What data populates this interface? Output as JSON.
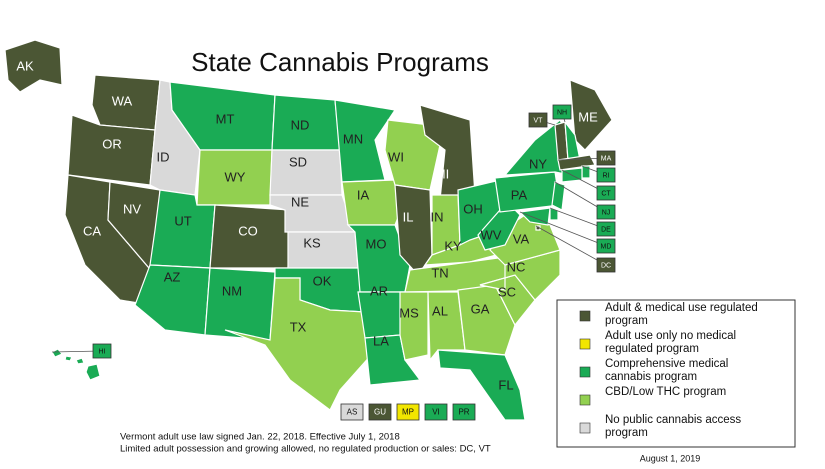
{
  "title": "State Cannabis Programs",
  "legend": [
    {
      "label": "Adult & medical use regulated program",
      "color": "#4b5634"
    },
    {
      "label": "Adult use only no medical regulated program",
      "color": "#f2e600"
    },
    {
      "label": "Comprehensive medical cannabis program",
      "color": "#1aab55"
    },
    {
      "label": "CBD/Low THC program",
      "color": "#92d050"
    },
    {
      "label": "No public cannabis access program",
      "color": "#d9d9d9"
    }
  ],
  "states": [
    {
      "label": "AK",
      "color": "#4b5634"
    },
    {
      "label": "WA",
      "color": "#4b5634"
    },
    {
      "label": "OR",
      "color": "#4b5634"
    },
    {
      "label": "CA",
      "color": "#4b5634"
    },
    {
      "label": "NV",
      "color": "#4b5634"
    },
    {
      "label": "ID",
      "color": "#d9d9d9"
    },
    {
      "label": "MT",
      "color": "#1aab55"
    },
    {
      "label": "WY",
      "color": "#92d050"
    },
    {
      "label": "UT",
      "color": "#1aab55"
    },
    {
      "label": "CO",
      "color": "#4b5634"
    },
    {
      "label": "AZ",
      "color": "#1aab55"
    },
    {
      "label": "NM",
      "color": "#1aab55"
    },
    {
      "label": "ND",
      "color": "#1aab55"
    },
    {
      "label": "SD",
      "color": "#d9d9d9"
    },
    {
      "label": "NE",
      "color": "#d9d9d9"
    },
    {
      "label": "KS",
      "color": "#d9d9d9"
    },
    {
      "label": "OK",
      "color": "#1aab55"
    },
    {
      "label": "TX",
      "color": "#92d050"
    },
    {
      "label": "MN",
      "color": "#1aab55"
    },
    {
      "label": "IA",
      "color": "#92d050"
    },
    {
      "label": "MO",
      "color": "#1aab55"
    },
    {
      "label": "AR",
      "color": "#1aab55"
    },
    {
      "label": "LA",
      "color": "#1aab55"
    },
    {
      "label": "WI",
      "color": "#92d050"
    },
    {
      "label": "IL",
      "color": "#4b5634"
    },
    {
      "label": "MI",
      "color": "#4b5634"
    },
    {
      "label": "IN",
      "color": "#92d050"
    },
    {
      "label": "OH",
      "color": "#1aab55"
    },
    {
      "label": "KY",
      "color": "#92d050"
    },
    {
      "label": "TN",
      "color": "#92d050"
    },
    {
      "label": "MS",
      "color": "#92d050"
    },
    {
      "label": "AL",
      "color": "#92d050"
    },
    {
      "label": "GA",
      "color": "#92d050"
    },
    {
      "label": "FL",
      "color": "#1aab55"
    },
    {
      "label": "SC",
      "color": "#92d050"
    },
    {
      "label": "NC",
      "color": "#92d050"
    },
    {
      "label": "VA",
      "color": "#92d050"
    },
    {
      "label": "WV",
      "color": "#1aab55"
    },
    {
      "label": "PA",
      "color": "#1aab55"
    },
    {
      "label": "NY",
      "color": "#1aab55"
    },
    {
      "label": "ME",
      "color": "#4b5634"
    },
    {
      "label": "VT",
      "color": "#4b5634"
    },
    {
      "label": "NH",
      "color": "#1aab55"
    },
    {
      "label": "MA",
      "color": "#4b5634"
    },
    {
      "label": "RI",
      "color": "#1aab55"
    },
    {
      "label": "CT",
      "color": "#1aab55"
    },
    {
      "label": "NJ",
      "color": "#1aab55"
    },
    {
      "label": "DE",
      "color": "#1aab55"
    },
    {
      "label": "MD",
      "color": "#1aab55"
    },
    {
      "label": "DC",
      "color": "#4b5634"
    },
    {
      "label": "HI",
      "color": "#1aab55"
    }
  ],
  "territories": [
    {
      "label": "AS",
      "color": "#d9d9d9"
    },
    {
      "label": "GU",
      "color": "#4b5634"
    },
    {
      "label": "MP",
      "color": "#f2e600"
    },
    {
      "label": "VI",
      "color": "#1aab55"
    },
    {
      "label": "PR",
      "color": "#1aab55"
    }
  ],
  "footnotes": [
    "Vermont adult use law signed Jan. 22, 2018. Effective July 1, 2018",
    "Limited adult possession and growing allowed, no regulated production or sales: DC, VT"
  ],
  "date": "August 1, 2019"
}
